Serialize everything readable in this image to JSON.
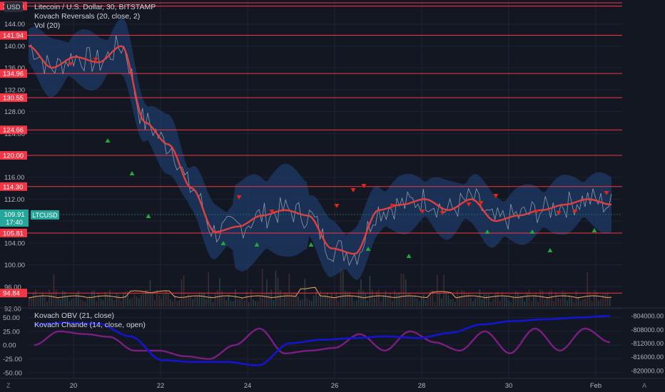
{
  "header": {
    "currency_button": "USD",
    "title": "Litecoin / U.S. Dollar, 30, BITSTAMP",
    "indicator1": "Kovach Reversals (20, close, 2)",
    "indicator2": "Vol (20)"
  },
  "lower_pane": {
    "indicator1": "Kovach OBV (21, close)",
    "indicator2": "Kovach Chande (14, close, open)"
  },
  "footer": {
    "left_label": "Z",
    "right_label": "A"
  },
  "price_axis": {
    "ticks": [
      "144.00",
      "140.00",
      "136.00",
      "132.00",
      "128.00",
      "124.00",
      "120.00",
      "116.00",
      "112.00",
      "108.00",
      "104.00",
      "100.00",
      "96.00",
      "92.00"
    ],
    "level_labels": [
      "147.29",
      "141.94",
      "134.96",
      "130.55",
      "124.66",
      "120.00",
      "114.30",
      "105.81",
      "94.84"
    ]
  },
  "current_price": {
    "symbol": "LTCUSD",
    "price": "109.91",
    "countdown": "17:40"
  },
  "osc_left_ticks": [
    "50.00",
    "25.00",
    "0.00",
    "-25.00",
    "-50.00"
  ],
  "osc_right_ticks": [
    "-804000.00",
    "-808000.00",
    "-812000.00",
    "-816000.00",
    "-820000.00"
  ],
  "time_axis": [
    "20",
    "22",
    "24",
    "26",
    "28",
    "30",
    "Feb"
  ],
  "chart_data": {
    "type": "line",
    "title": "Litecoin / U.S. Dollar, 30, BITSTAMP",
    "x": [
      "Jan 19",
      "Jan 20",
      "Jan 20.5",
      "Jan 21",
      "Jan 21.5",
      "Jan 22",
      "Jan 22.5",
      "Jan 23",
      "Jan 23.5",
      "Jan 24",
      "Jan 24.5",
      "Jan 25",
      "Jan 25.5",
      "Jan 26",
      "Jan 26.5",
      "Jan 27",
      "Jan 27.5",
      "Jan 28",
      "Jan 28.5",
      "Jan 29",
      "Jan 29.5",
      "Jan 30",
      "Jan 30.5",
      "Jan 31",
      "Jan 31.5",
      "Feb 1"
    ],
    "series": [
      {
        "name": "Kovach Reversals",
        "values": [
          140,
          136,
          138,
          137,
          140,
          126,
          122,
          114,
          106,
          107,
          109,
          110,
          109,
          103,
          102,
          110,
          111,
          112,
          110,
          112,
          108,
          109,
          110,
          111,
          112,
          111
        ]
      }
    ],
    "osc_series": [
      {
        "name": "Kovach OBV",
        "values": [
          -806500,
          -806000,
          -806300,
          -810000,
          -817000,
          -817500,
          -817500,
          -818500,
          -812000,
          -811000,
          -810500,
          -810000,
          -810500,
          -809000,
          -806500,
          -805500,
          -805000,
          -804500,
          -804000
        ]
      },
      {
        "name": "Kovach Chande",
        "values": [
          0,
          25,
          20,
          15,
          -10,
          -10,
          -20,
          -25,
          0,
          30,
          -15,
          -10,
          -5,
          20,
          -10,
          25,
          5,
          -10,
          25,
          -15,
          30,
          -10,
          30,
          5
        ]
      }
    ],
    "levels": [
      147.29,
      141.94,
      134.96,
      130.55,
      124.66,
      120.0,
      114.3,
      105.81,
      94.84
    ],
    "ylim": [
      92,
      148
    ],
    "osc_ylim": [
      -55,
      62
    ],
    "colors": {
      "background": "#131722",
      "level_line": "#f23645",
      "band": "#1e3a66",
      "ma": "#e0403f",
      "price": "#b2b5be",
      "volume_ma": "#f4a460",
      "obv": "#1414d2",
      "chande": "#7b1e82",
      "current_price": "#26a69a",
      "up_marker": "#26a641",
      "down_marker": "#e0261a"
    }
  }
}
